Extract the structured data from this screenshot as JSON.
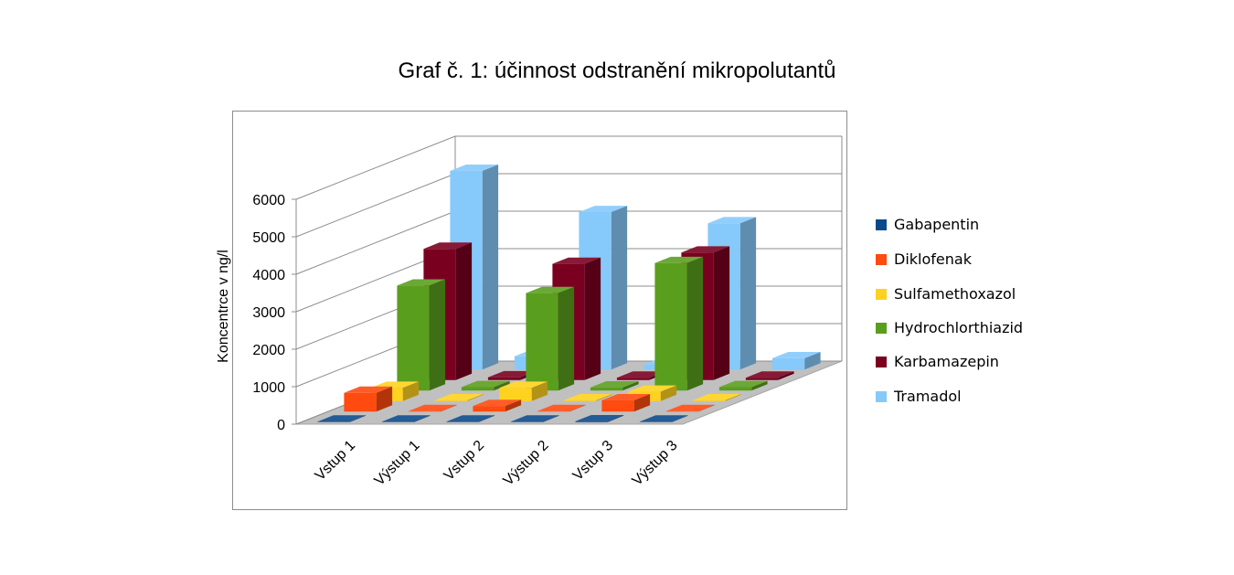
{
  "chart_data": {
    "type": "bar3d",
    "title": "Graf č. 1: účinnost odstranění mikropolutantů",
    "xlabel": "",
    "ylabel": "Koncentrce v ng/l",
    "ylim": [
      0,
      6000
    ],
    "yticks": [
      "0",
      "1000",
      "2000",
      "3000",
      "4000",
      "5000",
      "6000"
    ],
    "categories": [
      "Vstup 1",
      "Výstup 1",
      "Vstup 2",
      "Výstup 2",
      "Vstup 3",
      "Výstup 3"
    ],
    "legend_position": "right",
    "series": [
      {
        "name": "Gabapentin",
        "color": "#0a4a8a",
        "values": [
          0,
          0,
          0,
          0,
          20,
          0
        ]
      },
      {
        "name": "Diklofenak",
        "color": "#ff4a10",
        "values": [
          500,
          10,
          150,
          10,
          300,
          10
        ]
      },
      {
        "name": "Sulfamethoxazol",
        "color": "#ffd21f",
        "values": [
          350,
          20,
          350,
          20,
          250,
          20
        ]
      },
      {
        "name": "Hydrochlorthiazid",
        "color": "#5a9e1e",
        "values": [
          2800,
          90,
          2600,
          80,
          3400,
          90
        ]
      },
      {
        "name": "Karbamazepin",
        "color": "#7a0020",
        "values": [
          3500,
          70,
          3100,
          60,
          3400,
          60
        ]
      },
      {
        "name": "Tramadol",
        "color": "#86c9fb",
        "values": [
          5300,
          350,
          4200,
          130,
          3900,
          300
        ]
      }
    ]
  }
}
